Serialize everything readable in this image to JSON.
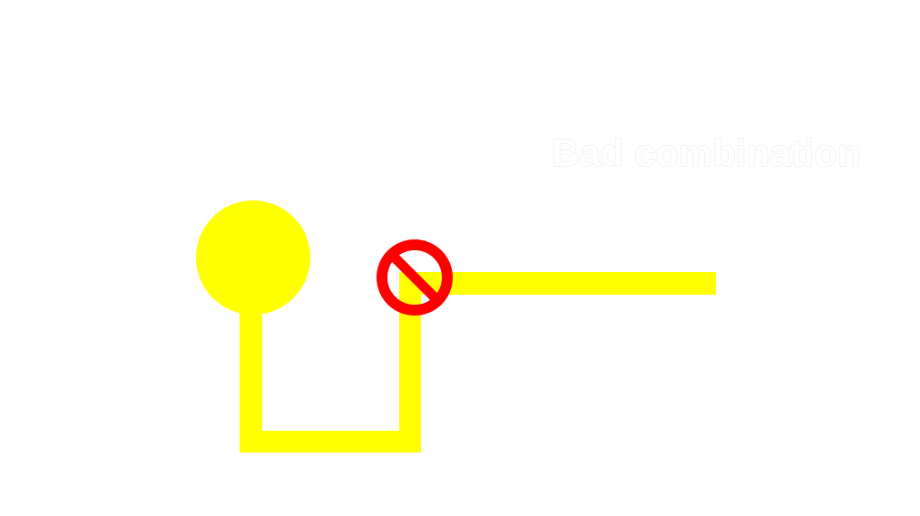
{
  "label": "Bad combination",
  "colors": {
    "background": "#ffffff",
    "path": "#ffff00",
    "prohibition": "#ff0000",
    "label_text": "#ffffff"
  },
  "icons": {
    "start_node": "circle-node",
    "blocker": "prohibition-icon"
  }
}
